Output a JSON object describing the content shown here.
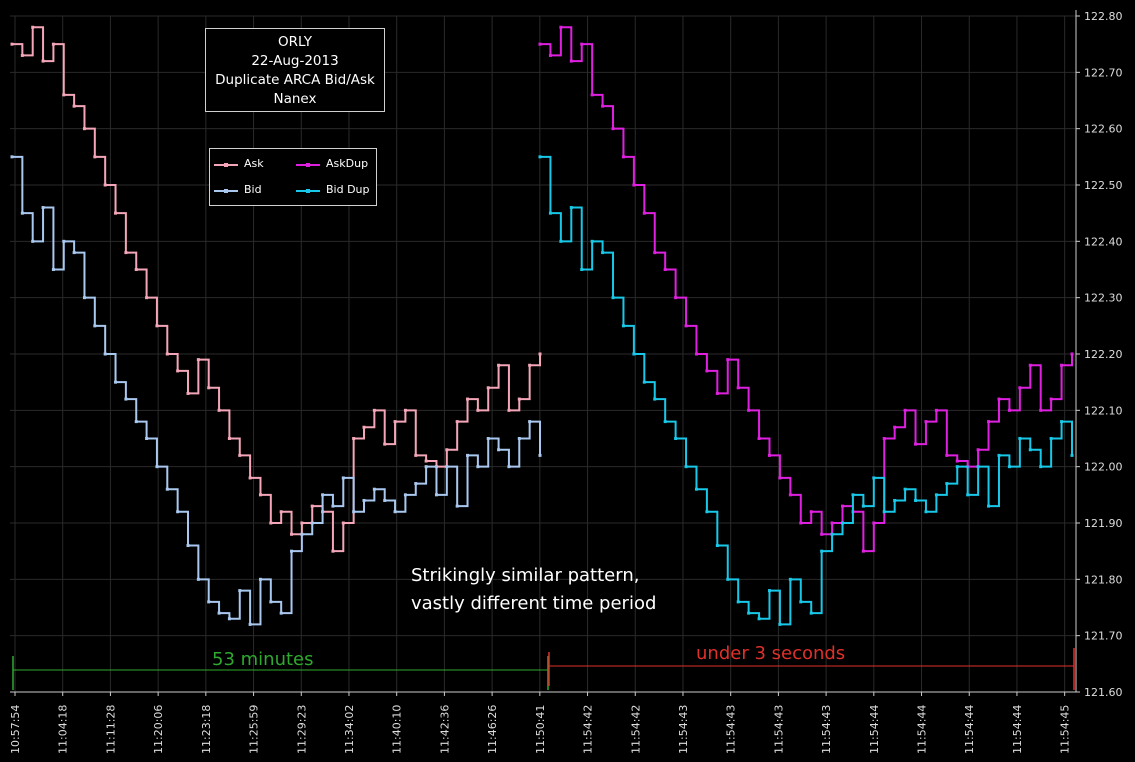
{
  "chart_data": {
    "type": "line",
    "title_lines": [
      "ORLY",
      "22-Aug-2013",
      "Duplicate ARCA Bid/Ask",
      "Nanex"
    ],
    "ylim": [
      121.6,
      122.8
    ],
    "y_ticks": [
      "121.60",
      "121.70",
      "121.80",
      "121.90",
      "122.00",
      "122.10",
      "122.20",
      "122.30",
      "122.40",
      "122.50",
      "122.60",
      "122.70",
      "122.80"
    ],
    "x_ticks": [
      "10:57:54",
      "11:04:18",
      "11:11:28",
      "11:20:06",
      "11:23:18",
      "11:25:59",
      "11:29:23",
      "11:34:02",
      "11:40:10",
      "11:42:36",
      "11:46:26",
      "11:50:41",
      "11:54:42",
      "11:54:42",
      "11:54:43",
      "11:54:43",
      "11:54:43",
      "11:54:43",
      "11:54:44",
      "11:54:44",
      "11:54:44",
      "11:54:44",
      "11:54:45"
    ],
    "legend_position": "upper-left",
    "grid": true,
    "series": [
      {
        "name": "Ask",
        "color": "#f4a6b8",
        "segment": "first",
        "values": [
          122.75,
          122.73,
          122.78,
          122.72,
          122.75,
          122.66,
          122.64,
          122.6,
          122.55,
          122.5,
          122.45,
          122.38,
          122.35,
          122.3,
          122.25,
          122.2,
          122.17,
          122.13,
          122.19,
          122.14,
          122.1,
          122.05,
          122.02,
          121.98,
          121.95,
          121.9,
          121.92,
          121.88,
          121.9,
          121.93,
          121.92,
          121.85,
          121.9,
          122.05,
          122.07,
          122.1,
          122.04,
          122.08,
          122.1,
          122.02,
          122.01,
          122.0,
          122.03,
          122.08,
          122.12,
          122.1,
          122.14,
          122.18,
          122.1,
          122.12,
          122.18,
          122.2
        ]
      },
      {
        "name": "Bid",
        "color": "#a9c8f0",
        "segment": "first",
        "values": [
          122.55,
          122.45,
          122.4,
          122.46,
          122.35,
          122.4,
          122.38,
          122.3,
          122.25,
          122.2,
          122.15,
          122.12,
          122.08,
          122.05,
          122.0,
          121.96,
          121.92,
          121.86,
          121.8,
          121.76,
          121.74,
          121.73,
          121.78,
          121.72,
          121.8,
          121.76,
          121.74,
          121.85,
          121.88,
          121.9,
          121.95,
          121.93,
          121.98,
          121.92,
          121.94,
          121.96,
          121.94,
          121.92,
          121.95,
          121.97,
          122.0,
          121.95,
          122.0,
          121.93,
          122.02,
          122.0,
          122.05,
          122.03,
          122.0,
          122.05,
          122.08,
          122.02
        ]
      },
      {
        "name": "AskDup",
        "color": "#e020e0",
        "segment": "second",
        "values": [
          122.75,
          122.73,
          122.78,
          122.72,
          122.75,
          122.66,
          122.64,
          122.6,
          122.55,
          122.5,
          122.45,
          122.38,
          122.35,
          122.3,
          122.25,
          122.2,
          122.17,
          122.13,
          122.19,
          122.14,
          122.1,
          122.05,
          122.02,
          121.98,
          121.95,
          121.9,
          121.92,
          121.88,
          121.9,
          121.93,
          121.92,
          121.85,
          121.9,
          122.05,
          122.07,
          122.1,
          122.04,
          122.08,
          122.1,
          122.02,
          122.01,
          122.0,
          122.03,
          122.08,
          122.12,
          122.1,
          122.14,
          122.18,
          122.1,
          122.12,
          122.18,
          122.2
        ]
      },
      {
        "name": "Bid Dup",
        "color": "#18c8e8",
        "segment": "second",
        "values": [
          122.55,
          122.45,
          122.4,
          122.46,
          122.35,
          122.4,
          122.38,
          122.3,
          122.25,
          122.2,
          122.15,
          122.12,
          122.08,
          122.05,
          122.0,
          121.96,
          121.92,
          121.86,
          121.8,
          121.76,
          121.74,
          121.73,
          121.78,
          121.72,
          121.8,
          121.76,
          121.74,
          121.85,
          121.88,
          121.9,
          121.95,
          121.93,
          121.98,
          121.92,
          121.94,
          121.96,
          121.94,
          121.92,
          121.95,
          121.97,
          122.0,
          121.95,
          122.0,
          121.93,
          122.02,
          122.0,
          122.05,
          122.03,
          122.0,
          122.05,
          122.08,
          122.02
        ]
      }
    ],
    "annotations": {
      "note_line1": "Strikingly similar pattern,",
      "note_line2": "vastly different time period",
      "span1_label": "53 minutes",
      "span2_label": "under 3 seconds",
      "span1_color": "#2eaa2e",
      "span2_color": "#e0302a"
    }
  }
}
